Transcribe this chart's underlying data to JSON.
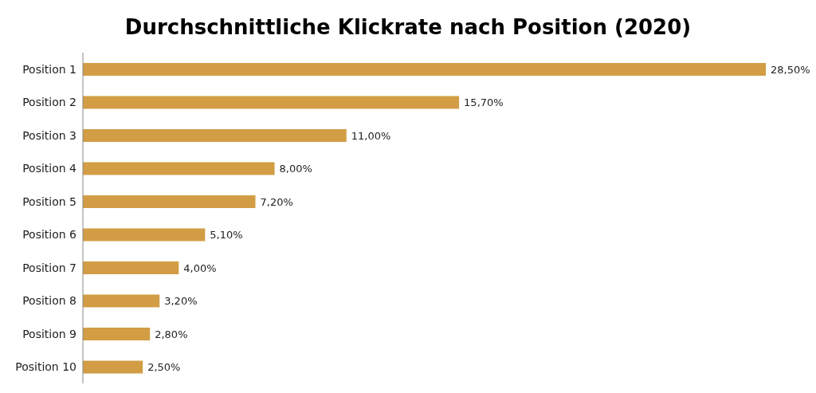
{
  "chart_data": {
    "type": "bar",
    "orientation": "horizontal",
    "title": "Durchschnittliche Klickrate nach Position (2020)",
    "categories": [
      "Position 1",
      "Position 2",
      "Position 3",
      "Position 4",
      "Position 5",
      "Position 6",
      "Position 7",
      "Position 8",
      "Position 9",
      "Position 10"
    ],
    "values": [
      28.5,
      15.7,
      11.0,
      8.0,
      7.2,
      5.1,
      4.0,
      3.2,
      2.8,
      2.5
    ],
    "value_labels": [
      "28,50%",
      "15,70%",
      "11,00%",
      "8,00%",
      "7,20%",
      "5,10%",
      "4,00%",
      "3,20%",
      "2,80%",
      "2,50%"
    ],
    "color": "#d29d44",
    "grid": false,
    "legend": false
  }
}
